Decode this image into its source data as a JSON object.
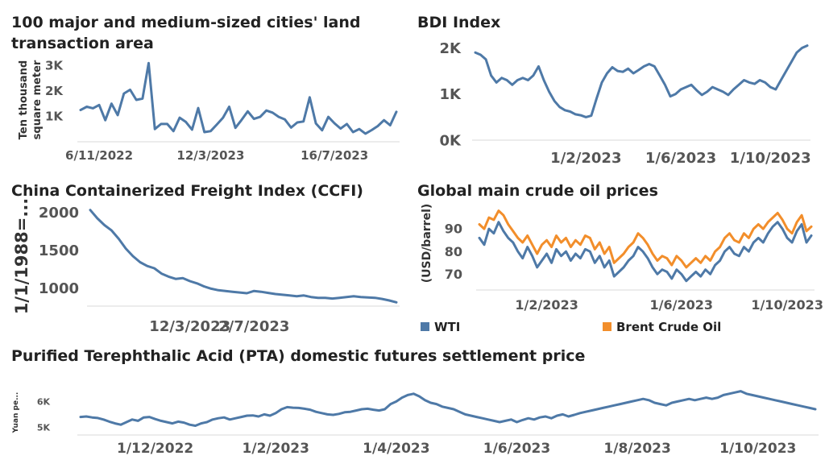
{
  "colors": {
    "blue": "#4e79a7",
    "orange": "#f28e2b",
    "axis": "#cfcfcf",
    "text": "#555555"
  },
  "chart_data": [
    {
      "id": "land",
      "type": "line",
      "title": "100 major and medium-sized cities' land transaction area",
      "title_lines": [
        "100 major and medium-sized cities' land",
        "transaction area"
      ],
      "ylabel": "Ten thousand square meter",
      "ylabel_lines": [
        "Ten thousand",
        "square meter"
      ],
      "ylim": [
        0,
        3300
      ],
      "yticks": [
        1000,
        2000,
        3000
      ],
      "ytick_labels": [
        "1K",
        "2K",
        "3K"
      ],
      "x_tick_labels": [
        "6/11/2022",
        "12/3/2023",
        "16/7/2023"
      ],
      "x_tick_index": [
        3,
        21,
        41
      ],
      "series": [
        {
          "color": "blue",
          "values": [
            1250,
            1380,
            1320,
            1450,
            850,
            1500,
            1050,
            1900,
            2050,
            1650,
            1700,
            3100,
            500,
            700,
            700,
            420,
            950,
            780,
            480,
            1330,
            380,
            420,
            680,
            950,
            1380,
            550,
            860,
            1200,
            900,
            980,
            1230,
            1150,
            980,
            880,
            560,
            760,
            800,
            1750,
            720,
            450,
            980,
            730,
            520,
            700,
            380,
            500,
            320,
            460,
            620,
            850,
            650,
            1180
          ]
        }
      ]
    },
    {
      "id": "bdi",
      "type": "line",
      "title": "BDI Index",
      "ylim": [
        0,
        2200
      ],
      "yticks": [
        0,
        1000,
        2000
      ],
      "ytick_labels": [
        "0K",
        "1K",
        "2K"
      ],
      "x_tick_labels": [
        "1/2/2023",
        "1/6/2023",
        "1/10/2023"
      ],
      "x_tick_index": [
        21,
        39,
        56
      ],
      "series": [
        {
          "color": "blue",
          "values": [
            1900,
            1850,
            1750,
            1400,
            1250,
            1350,
            1300,
            1200,
            1300,
            1350,
            1300,
            1400,
            1600,
            1300,
            1050,
            850,
            720,
            650,
            620,
            560,
            540,
            500,
            530,
            900,
            1250,
            1450,
            1580,
            1500,
            1480,
            1550,
            1450,
            1520,
            1600,
            1650,
            1600,
            1400,
            1200,
            950,
            1000,
            1100,
            1150,
            1200,
            1080,
            980,
            1050,
            1150,
            1100,
            1050,
            980,
            1100,
            1200,
            1300,
            1250,
            1220,
            1300,
            1250,
            1150,
            1100,
            1300,
            1500,
            1700,
            1900,
            2000,
            2050
          ]
        }
      ]
    },
    {
      "id": "ccfi",
      "type": "line",
      "title": "China Containerized Freight Index (CCFI)",
      "ylabel": "1/1/1988=...",
      "ylim": [
        760,
        2080
      ],
      "yticks": [
        1000,
        1500,
        2000
      ],
      "ytick_labels": [
        "1000",
        "1500",
        "2000"
      ],
      "x_tick_labels": [
        "12/3/2023",
        "2/7/2023"
      ],
      "x_tick_index": [
        14,
        23
      ],
      "series": [
        {
          "color": "blue",
          "values": [
            2030,
            1920,
            1830,
            1760,
            1650,
            1520,
            1420,
            1340,
            1290,
            1260,
            1190,
            1150,
            1120,
            1130,
            1090,
            1060,
            1020,
            990,
            970,
            960,
            950,
            940,
            930,
            960,
            950,
            935,
            920,
            910,
            900,
            890,
            900,
            880,
            870,
            870,
            860,
            870,
            880,
            890,
            880,
            875,
            870,
            855,
            835,
            810
          ]
        }
      ]
    },
    {
      "id": "oil",
      "type": "line",
      "title": "Global main crude oil prices",
      "ylabel": "(USD/barrel)",
      "ylim": [
        63,
        100
      ],
      "yticks": [
        70,
        80,
        90
      ],
      "ytick_labels": [
        "70",
        "80",
        "90"
      ],
      "x_tick_labels": [
        "1/2/2023",
        "1/6/2023",
        "1/10/2023"
      ],
      "x_tick_index": [
        14,
        42,
        64
      ],
      "legend": [
        "WTI",
        "Brent Crude Oil"
      ],
      "series": [
        {
          "name": "WTI",
          "color": "blue",
          "values": [
            86,
            83,
            90,
            88,
            93,
            89,
            86,
            84,
            80,
            77,
            82,
            78,
            73,
            76,
            79,
            75,
            81,
            78,
            80,
            76,
            79,
            77,
            81,
            80,
            75,
            78,
            73,
            76,
            69,
            71,
            73,
            76,
            78,
            82,
            80,
            77,
            73,
            70,
            72,
            71,
            68,
            72,
            70,
            67,
            69,
            71,
            69,
            72,
            70,
            74,
            76,
            80,
            82,
            79,
            78,
            82,
            80,
            84,
            86,
            84,
            88,
            91,
            93,
            90,
            86,
            84,
            89,
            92,
            84,
            87
          ]
        },
        {
          "name": "Brent Crude Oil",
          "color": "orange",
          "values": [
            92,
            90,
            95,
            94,
            98,
            96,
            92,
            89,
            86,
            84,
            87,
            83,
            79,
            83,
            85,
            82,
            87,
            84,
            86,
            82,
            85,
            83,
            87,
            86,
            81,
            84,
            79,
            82,
            75,
            77,
            79,
            82,
            84,
            88,
            86,
            83,
            79,
            76,
            78,
            77,
            74,
            78,
            76,
            73,
            75,
            77,
            75,
            78,
            76,
            80,
            82,
            86,
            88,
            85,
            84,
            88,
            86,
            90,
            92,
            90,
            93,
            95,
            97,
            94,
            90,
            88,
            93,
            96,
            89,
            91
          ]
        }
      ]
    },
    {
      "id": "pta",
      "type": "line",
      "title": "Purified Terephthalic Acid (PTA) domestic futures settlement price",
      "ylabel": "Yuan pe...",
      "ylim": [
        4700,
        6700
      ],
      "yticks": [
        5000,
        6000
      ],
      "ytick_labels": [
        "5K",
        "6K"
      ],
      "x_tick_labels": [
        "1/12/2022",
        "1/2/2023",
        "1/4/2023",
        "1/6/2023",
        "1/8/2023",
        "1/10/2023"
      ],
      "x_tick_index": [
        13,
        34,
        55,
        76,
        97,
        118
      ],
      "series": [
        {
          "color": "blue",
          "values": [
            5400,
            5420,
            5380,
            5360,
            5300,
            5220,
            5150,
            5100,
            5200,
            5300,
            5250,
            5380,
            5400,
            5320,
            5250,
            5200,
            5150,
            5220,
            5180,
            5100,
            5060,
            5150,
            5200,
            5300,
            5350,
            5380,
            5300,
            5350,
            5400,
            5450,
            5460,
            5420,
            5500,
            5450,
            5550,
            5700,
            5780,
            5760,
            5750,
            5720,
            5680,
            5600,
            5550,
            5500,
            5480,
            5520,
            5580,
            5600,
            5650,
            5700,
            5720,
            5680,
            5650,
            5700,
            5900,
            6000,
            6150,
            6250,
            6300,
            6200,
            6050,
            5950,
            5900,
            5800,
            5750,
            5700,
            5600,
            5500,
            5450,
            5400,
            5350,
            5300,
            5250,
            5200,
            5250,
            5300,
            5200,
            5280,
            5350,
            5300,
            5380,
            5420,
            5350,
            5450,
            5500,
            5420,
            5480,
            5550,
            5600,
            5650,
            5700,
            5750,
            5800,
            5850,
            5900,
            5950,
            6000,
            6050,
            6100,
            6050,
            5950,
            5900,
            5850,
            5950,
            6000,
            6050,
            6100,
            6050,
            6100,
            6150,
            6100,
            6150,
            6250,
            6300,
            6350,
            6400,
            6300,
            6250,
            6200,
            6150,
            6100,
            6050,
            6000,
            5950,
            5900,
            5850,
            5800,
            5750,
            5700
          ]
        }
      ]
    }
  ]
}
